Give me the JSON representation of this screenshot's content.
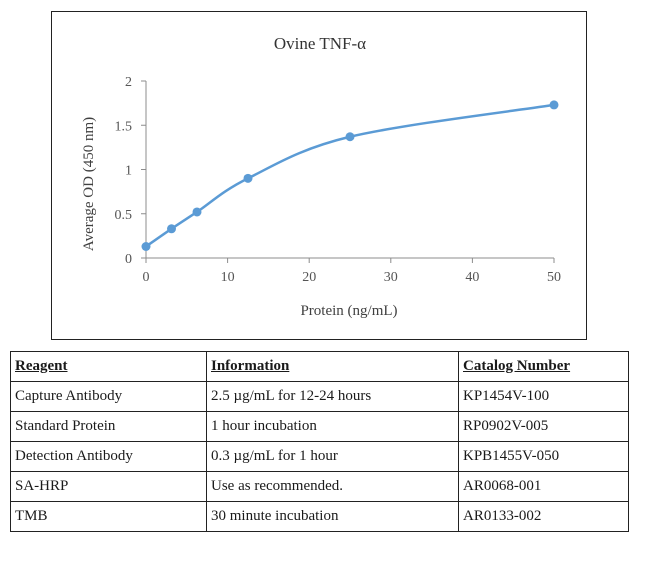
{
  "chart_data": {
    "type": "line",
    "title": "Ovine TNF-α",
    "xlabel": "Protein (ng/mL)",
    "ylabel": "Average OD (450 nm)",
    "xlim": [
      0,
      50
    ],
    "ylim": [
      0,
      2
    ],
    "xticks": [
      0,
      10,
      20,
      30,
      40,
      50
    ],
    "yticks": [
      0,
      0.5,
      1,
      1.5,
      2
    ],
    "grid": false,
    "color": "#5b9bd5",
    "series": [
      {
        "name": "Ovine TNF-α",
        "x": [
          0,
          3.125,
          6.25,
          12.5,
          25,
          50
        ],
        "y": [
          0.13,
          0.33,
          0.52,
          0.9,
          1.37,
          1.73
        ]
      }
    ]
  },
  "table": {
    "headers": [
      "Reagent",
      "Information",
      "Catalog Number"
    ],
    "rows": [
      [
        "Capture Antibody",
        "2.5 µg/mL for 12-24 hours",
        "KP1454V-100"
      ],
      [
        "Standard Protein",
        "1 hour incubation",
        "RP0902V-005"
      ],
      [
        "Detection Antibody",
        "0.3 µg/mL for 1 hour",
        "KPB1455V-050"
      ],
      [
        "SA-HRP",
        "Use as recommended.",
        "AR0068-001"
      ],
      [
        "TMB",
        "30 minute incubation",
        "AR0133-002"
      ]
    ]
  }
}
